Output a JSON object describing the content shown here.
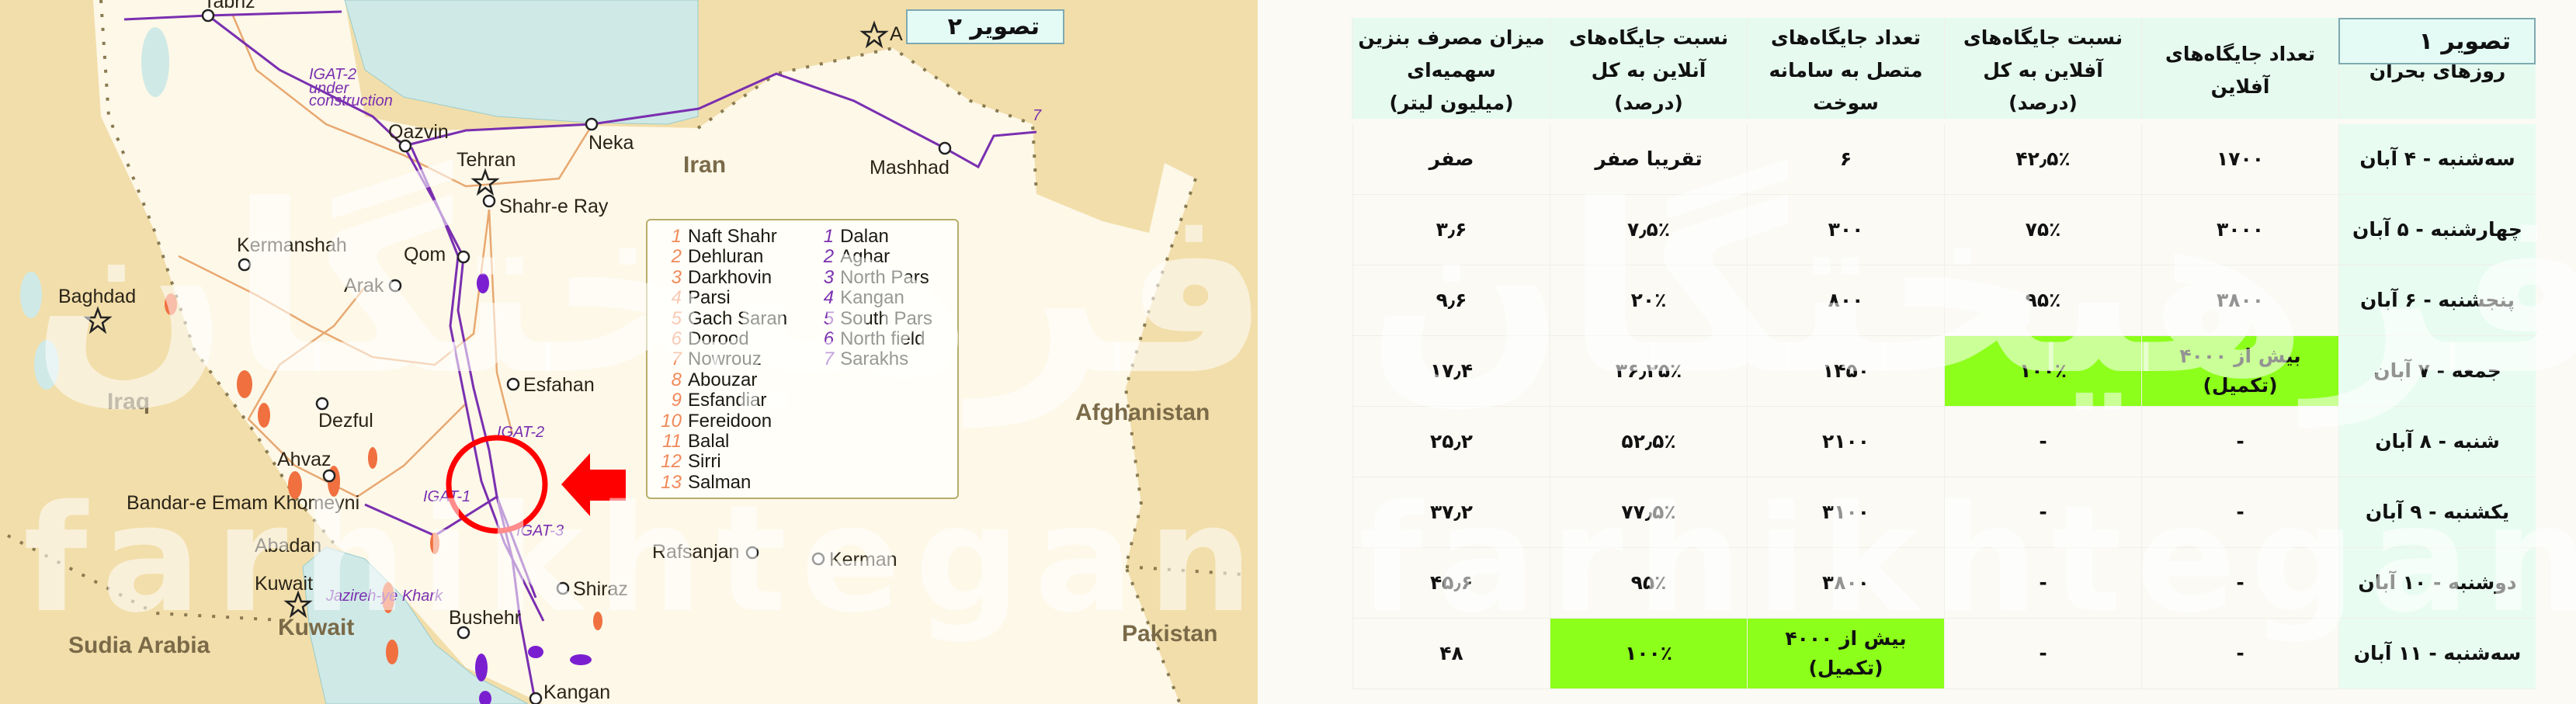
{
  "map": {
    "title": "تصویر ۲",
    "labels": [
      "Tabriz",
      "IGAT-2",
      "under",
      "construction",
      "Qazvin",
      "Tehran",
      "Shahr-e Ray",
      "Neka",
      "Iran",
      "Mashhad",
      "Kermanshah",
      "Qom",
      "Arak",
      "Baghdad",
      "Iraq",
      "Esfahan",
      "Dezful",
      "IGAT-2",
      "Ahvaz",
      "Bandar-e Emam Khomeyni",
      "IGAT-1",
      "IGAT-3",
      "Abadan",
      "Rafsanjan",
      "Kerman",
      "Shiraz",
      "Kuwait",
      "Jazireh-ye Khark",
      "Kuwait",
      "Sudia Arabia",
      "Bushehr",
      "Afghanistan",
      "Pakistan",
      "Kangan",
      "A",
      "7"
    ],
    "legend": {
      "oil_fields": [
        {
          "n": "1",
          "name": "Naft Shahr"
        },
        {
          "n": "2",
          "name": "Dehluran"
        },
        {
          "n": "3",
          "name": "Darkhovin"
        },
        {
          "n": "4",
          "name": "Parsi"
        },
        {
          "n": "5",
          "name": "Gach Saran"
        },
        {
          "n": "6",
          "name": "Dorood"
        },
        {
          "n": "7",
          "name": "Nowrouz"
        },
        {
          "n": "8",
          "name": "Abouzar"
        },
        {
          "n": "9",
          "name": "Esfandiar"
        },
        {
          "n": "10",
          "name": "Fereidoon"
        },
        {
          "n": "11",
          "name": "Balal"
        },
        {
          "n": "12",
          "name": "Sirri"
        },
        {
          "n": "13",
          "name": "Salman"
        }
      ],
      "gas_fields": [
        {
          "n": "1",
          "name": "Dalan"
        },
        {
          "n": "2",
          "name": "Aghar"
        },
        {
          "n": "3",
          "name": "North Pars"
        },
        {
          "n": "4",
          "name": "Kangan"
        },
        {
          "n": "5",
          "name": "South Pars"
        },
        {
          "n": "6",
          "name": "North field"
        },
        {
          "n": "7",
          "name": "Sarakhs"
        }
      ]
    },
    "colors": {
      "iran": "#fdf8e8",
      "neighbors": "#f2deaa",
      "water": "#cfe9e6",
      "pipeline": "#7a2fb0",
      "oil": "#f08a5a",
      "highlight": "#ff0000"
    }
  },
  "table": {
    "title": "تصویر ۱",
    "headers": [
      "روزهای بحران",
      "تعداد جایگاه‌های\nآفلاین",
      "نسبت جایگاه‌های\nآفلاین به کل\n(درصد)",
      "تعداد جایگاه‌های\nمتصل به سامانه\nسوخت",
      "نسبت جایگاه‌های\nآنلاین به کل\n(درصد)",
      "میزان مصرف بنزین\nسهمیه‌ای\n(میلیون لیتر)"
    ],
    "rows": [
      [
        "سه‌شنبه - ۴ آبان",
        "۱۷۰۰",
        "۴۲٫۵٪",
        "۶",
        "تقریبا صفر",
        "صفر"
      ],
      [
        "چهارشنبه - ۵ آبان",
        "۳۰۰۰",
        "۷۵٪",
        "۳۰۰",
        "۷٫۵٪",
        "۳٫۶"
      ],
      [
        "پنجشنبه - ۶ آبان",
        "۳۸۰۰",
        "۹۵٪",
        "۸۰۰",
        "۲۰٪",
        "۹٫۶"
      ],
      [
        "جمعه - ۷ آبان",
        "بیش از ۴۰۰۰\n(تکمیل)",
        "۱۰۰٪",
        "۱۴۵۰",
        "۳۶٫۲۵٪",
        "۱۷٫۴"
      ],
      [
        "شنبه - ۸ آبان",
        "-",
        "-",
        "۲۱۰۰",
        "۵۲٫۵٪",
        "۲۵٫۲"
      ],
      [
        "یکشنبه - ۹ آبان",
        "-",
        "-",
        "۳۱۰۰",
        "۷۷٫۵٪",
        "۳۷٫۲"
      ],
      [
        "دوشنبه - ۱۰ آبان",
        "-",
        "-",
        "۳۸۰۰",
        "۹۵٪",
        "۴۵٫۶"
      ],
      [
        "سه‌شنبه - ۱۱ آبان",
        "-",
        "-",
        "بیش از ۴۰۰۰\n(تکمیل)",
        "۱۰۰٪",
        "۴۸"
      ]
    ],
    "highlight_color": "#8cff1a",
    "header_color": "#e6faf0"
  },
  "watermark": {
    "fa": "فرهیختگان",
    "en": "farhikhtegan"
  }
}
